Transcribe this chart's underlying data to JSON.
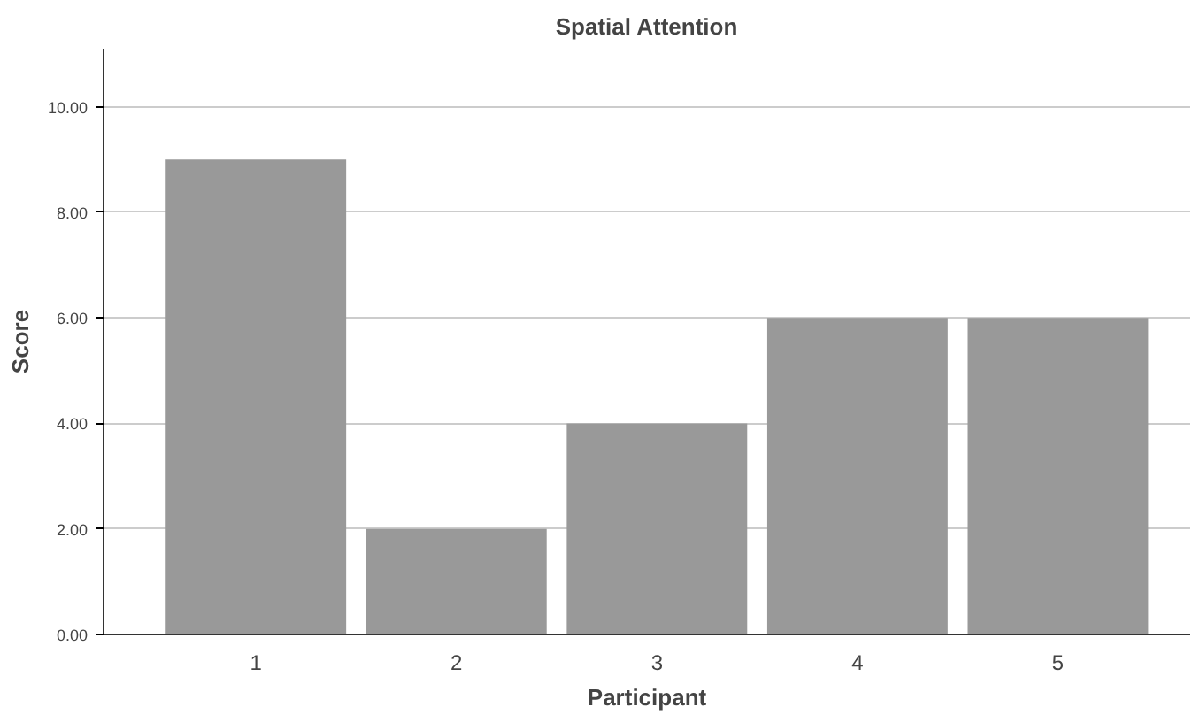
{
  "chart_data": {
    "type": "bar",
    "title": "Spatial Attention",
    "xlabel": "Participant",
    "ylabel": "Score",
    "categories": [
      "1",
      "2",
      "3",
      "4",
      "5"
    ],
    "values": [
      9,
      2,
      4,
      6,
      6
    ],
    "color": "#999999",
    "ylim": [
      0,
      11.1
    ],
    "yticks": [
      {
        "value": 0,
        "label": "0.00"
      },
      {
        "value": 2,
        "label": "2.00"
      },
      {
        "value": 4,
        "label": "4.00"
      },
      {
        "value": 6,
        "label": "6.00"
      },
      {
        "value": 8,
        "label": "8.00"
      },
      {
        "value": 10,
        "label": "10.00"
      }
    ],
    "grid": "y"
  }
}
